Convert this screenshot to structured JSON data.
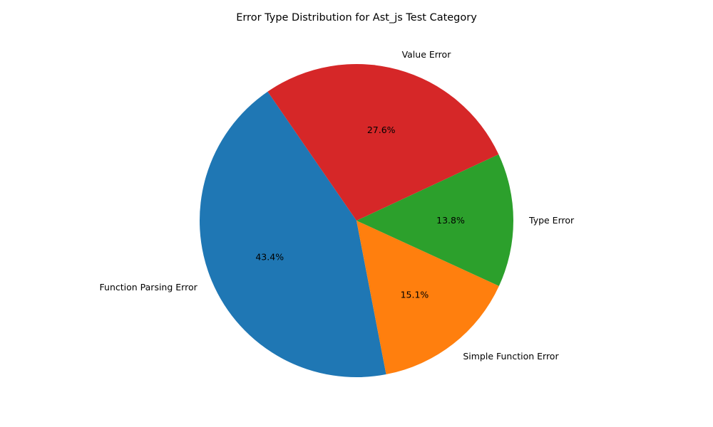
{
  "chart_data": {
    "type": "pie",
    "title": "Error Type Distribution for Ast_js Test Category",
    "start_angle_deg": 124.5,
    "direction": "counterclockwise",
    "slices": [
      {
        "label": "Function Parsing Error",
        "value": 43.4,
        "pct_label": "43.4%",
        "color": "#1f77b4"
      },
      {
        "label": "Simple Function Error",
        "value": 15.1,
        "pct_label": "15.1%",
        "color": "#ff7f0e"
      },
      {
        "label": "Type Error",
        "value": 13.8,
        "pct_label": "13.8%",
        "color": "#2ca02c"
      },
      {
        "label": "Value Error",
        "value": 27.6,
        "pct_label": "27.6%",
        "color": "#d62728"
      }
    ]
  }
}
